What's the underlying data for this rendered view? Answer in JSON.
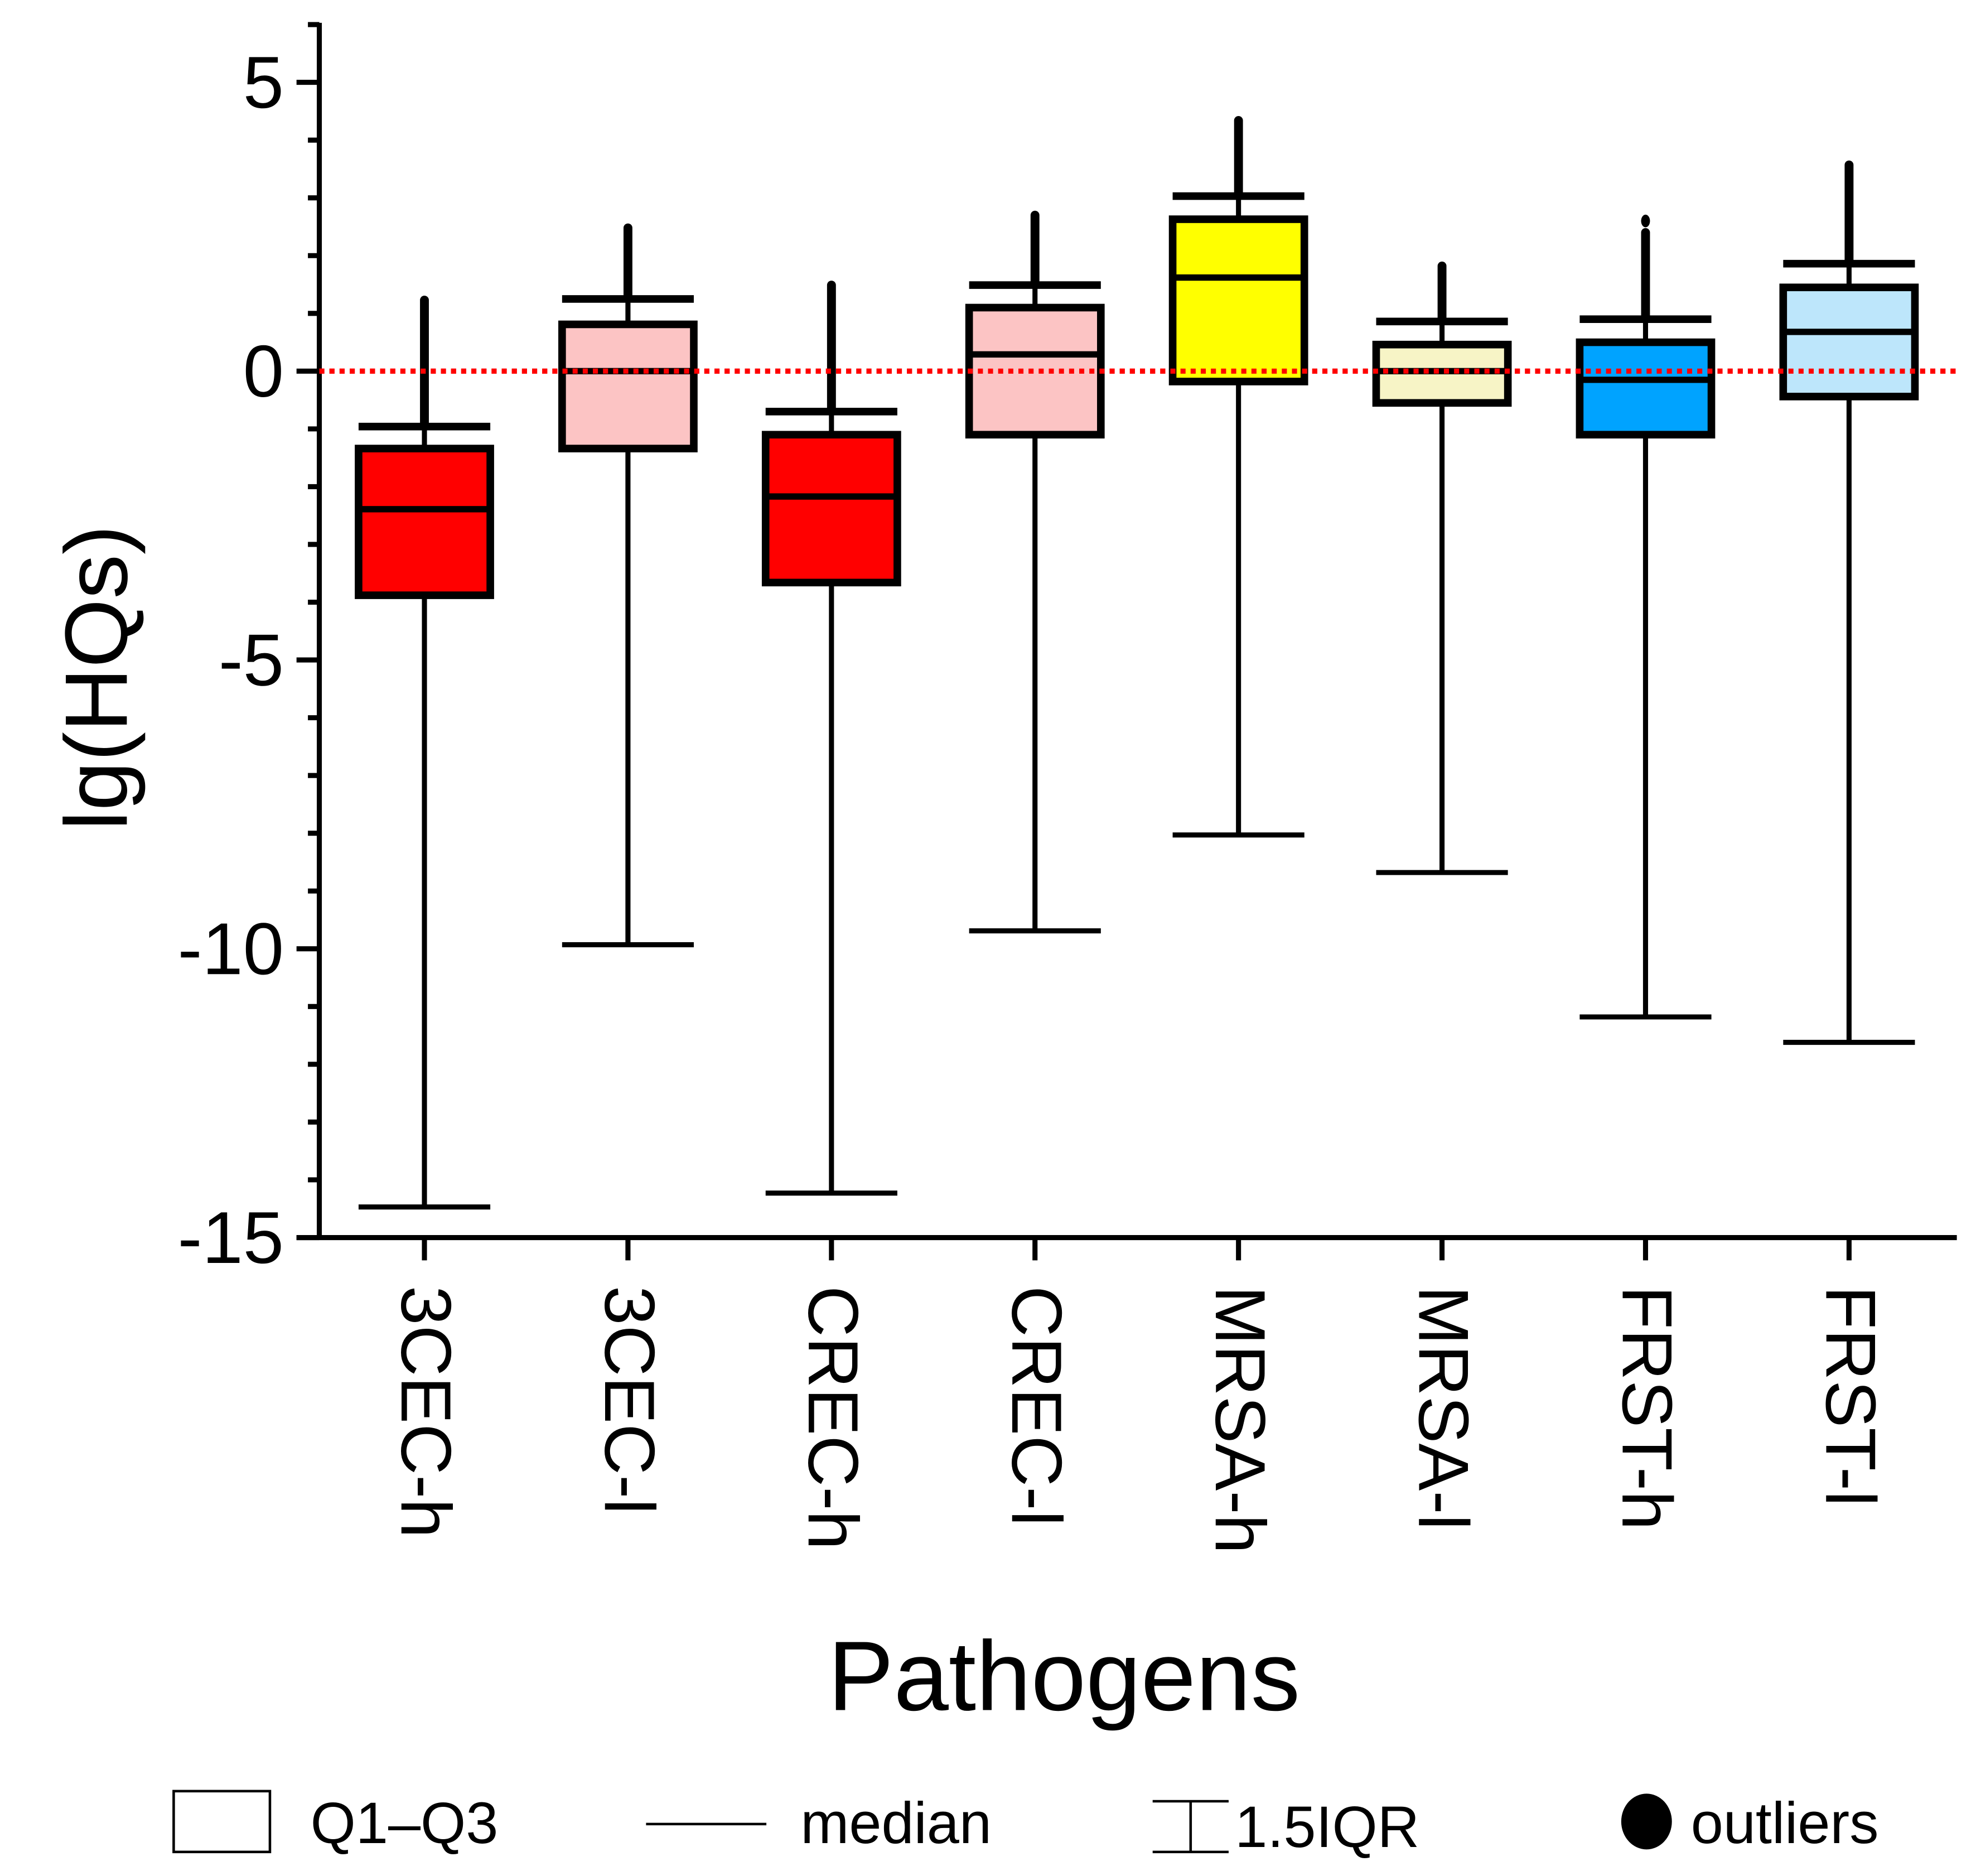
{
  "chart_data": {
    "type": "box",
    "ylabel": "lg(HQs)",
    "xlabel": "Pathogens",
    "ylim": [
      -15,
      6
    ],
    "yticks": [
      -15,
      -10,
      -5,
      0,
      5
    ],
    "reference_line": {
      "y": 0,
      "color": "#ff0000",
      "style": "dotted"
    },
    "categories": [
      "3CEC-h",
      "3CEC-l",
      "CREC-h",
      "CREC-l",
      "MRSA-h",
      "MRSA-l",
      "FRST-h",
      "FRST-l"
    ],
    "boxes": [
      {
        "category": "3CEC-h",
        "lower_whisker": -14.47,
        "q1": -3.88,
        "median": -2.39,
        "q3": -1.34,
        "upper_whisker": -0.96,
        "outliers_max": 1.23,
        "color": "#ff0000"
      },
      {
        "category": "3CEC-l",
        "lower_whisker": -9.93,
        "q1": -1.34,
        "median": 0.0,
        "q3": 0.81,
        "upper_whisker": 1.25,
        "outliers_max": 2.48,
        "color": "#fcc4c4"
      },
      {
        "category": "CREC-h",
        "lower_whisker": -14.23,
        "q1": -3.66,
        "median": -2.17,
        "q3": -1.1,
        "upper_whisker": -0.7,
        "outliers_max": 1.49,
        "color": "#ff0000"
      },
      {
        "category": "CREC-l",
        "lower_whisker": -9.69,
        "q1": -1.1,
        "median": 0.29,
        "q3": 1.1,
        "upper_whisker": 1.49,
        "outliers_max": 2.7,
        "color": "#fcc4c4"
      },
      {
        "category": "MRSA-h",
        "lower_whisker": -8.03,
        "q1": -0.18,
        "median": 1.62,
        "q3": 2.63,
        "upper_whisker": 3.03,
        "outliers_max": 4.34,
        "color": "#ffff00"
      },
      {
        "category": "MRSA-l",
        "lower_whisker": -8.68,
        "q1": -0.55,
        "median": 0.0,
        "q3": 0.46,
        "upper_whisker": 0.86,
        "outliers_max": 1.82,
        "color": "#f7f4c6"
      },
      {
        "category": "FRST-h",
        "lower_whisker": -11.18,
        "q1": -1.1,
        "median": -0.15,
        "q3": 0.5,
        "upper_whisker": 0.9,
        "outliers_max": 2.4,
        "isolated_outlier": 2.6,
        "color": "#00a3ff"
      },
      {
        "category": "FRST-l",
        "lower_whisker": -11.62,
        "q1": -0.44,
        "median": 0.68,
        "q3": 1.45,
        "upper_whisker": 1.86,
        "outliers_max": 3.57,
        "color": "#bde6fb"
      }
    ],
    "legend": {
      "placement": "bottom",
      "items": [
        "Q1–Q3",
        "median",
        "1.5IQR",
        "outliers"
      ]
    }
  }
}
